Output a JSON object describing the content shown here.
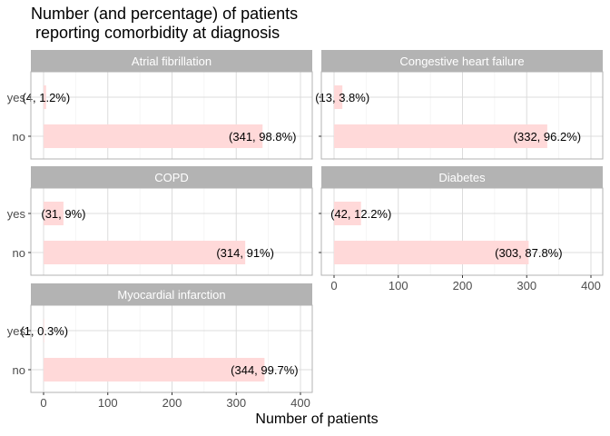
{
  "chart_data": {
    "type": "bar",
    "title": "Number (and percentage) of patients\n reporting comorbidity at diagnosis",
    "xlabel": "Number of patients",
    "ylabel": "",
    "categories": [
      "yes",
      "no"
    ],
    "xlim": [
      0,
      420
    ],
    "xticks": [
      0,
      100,
      200,
      300,
      400
    ],
    "bar_color": "#ffd9d9",
    "strip_color": "#b3b3b3",
    "grid": true,
    "panels": [
      {
        "name": "Atrial fibrillation",
        "values": [
          4,
          341
        ],
        "labels": [
          "(4, 1.2%)",
          "(341, 98.8%)"
        ]
      },
      {
        "name": "Congestive heart failure",
        "values": [
          13,
          332
        ],
        "labels": [
          "(13, 3.8%)",
          "(332, 96.2%)"
        ]
      },
      {
        "name": "COPD",
        "values": [
          31,
          314
        ],
        "labels": [
          "(31, 9%)",
          "(314, 91%)"
        ]
      },
      {
        "name": "Diabetes",
        "values": [
          42,
          303
        ],
        "labels": [
          "(42, 12.2%)",
          "(303, 87.8%)"
        ]
      },
      {
        "name": "Myocardial infarction",
        "values": [
          1,
          344
        ],
        "labels": [
          "(1, 0.3%)",
          "(344, 99.7%)"
        ]
      }
    ]
  }
}
